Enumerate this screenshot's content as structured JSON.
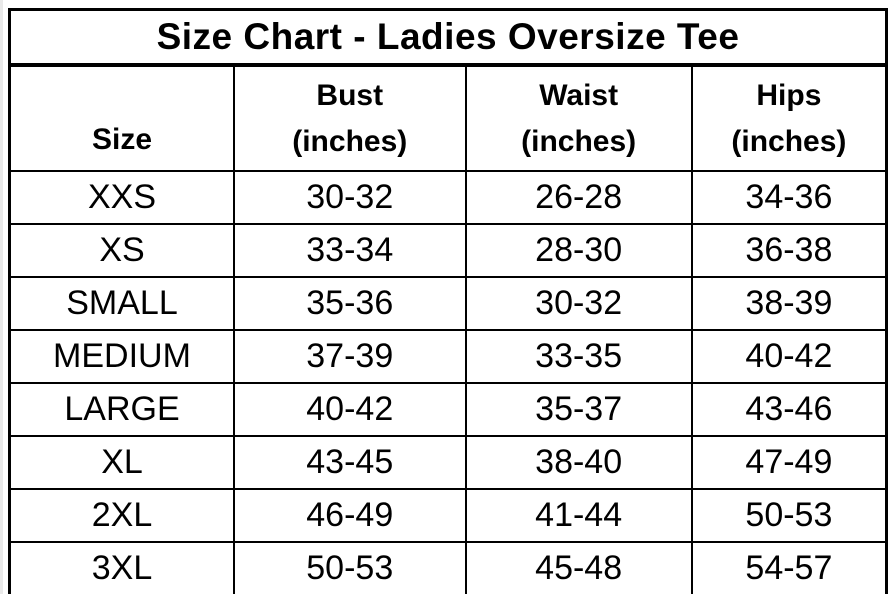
{
  "chart_data": {
    "type": "table",
    "title": "Size Chart - Ladies Oversize Tee",
    "columns": [
      "Size",
      "Bust (inches)",
      "Waist (inches)",
      "Hips (inches)"
    ],
    "rows": [
      [
        "XXS",
        "30-32",
        "26-28",
        "34-36"
      ],
      [
        "XS",
        "33-34",
        "28-30",
        "36-38"
      ],
      [
        "SMALL",
        "35-36",
        "30-32",
        "38-39"
      ],
      [
        "MEDIUM",
        "37-39",
        "33-35",
        "40-42"
      ],
      [
        "LARGE",
        "40-42",
        "35-37",
        "43-46"
      ],
      [
        "XL",
        "43-45",
        "38-40",
        "47-49"
      ],
      [
        "2XL",
        "46-49",
        "41-44",
        "50-53"
      ],
      [
        "3XL",
        "50-53",
        "45-48",
        "54-57"
      ]
    ]
  },
  "display": {
    "headers": {
      "size": "Size",
      "bust": "Bust",
      "waist": "Waist",
      "hips": "Hips",
      "unit": "(inches)"
    },
    "colors": {
      "border": "#000000",
      "text": "#000000",
      "background": "#ffffff"
    }
  }
}
